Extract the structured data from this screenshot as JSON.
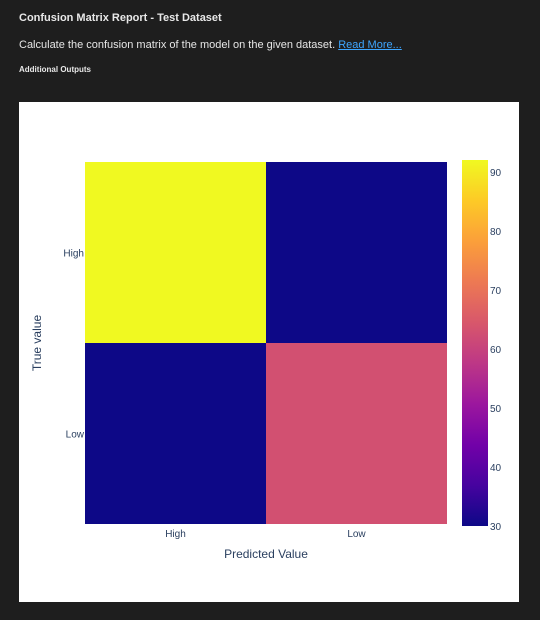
{
  "report": {
    "title": "Confusion Matrix Report - Test Dataset",
    "description": "Calculate the confusion matrix of the model on the given dataset.",
    "read_more": "Read More...",
    "section": "Additional Outputs"
  },
  "colors": {
    "background": "#1e1e1e",
    "link": "#3ea6ff",
    "colorscale": [
      "#0d0887",
      "#46039f",
      "#7201a8",
      "#9c179e",
      "#bd3786",
      "#d8576b",
      "#ed7953",
      "#fb9f3a",
      "#fdca26",
      "#f0f921"
    ]
  },
  "chart_data": {
    "type": "heatmap",
    "xlabel": "Predicted Value",
    "ylabel": "True value",
    "x_categories": [
      "High",
      "Low"
    ],
    "y_categories": [
      "High",
      "Low"
    ],
    "z": [
      [
        92,
        30
      ],
      [
        30,
        63
      ]
    ],
    "zlim": [
      30,
      92
    ],
    "colorbar_ticks": [
      30,
      40,
      50,
      60,
      70,
      80,
      90
    ]
  }
}
